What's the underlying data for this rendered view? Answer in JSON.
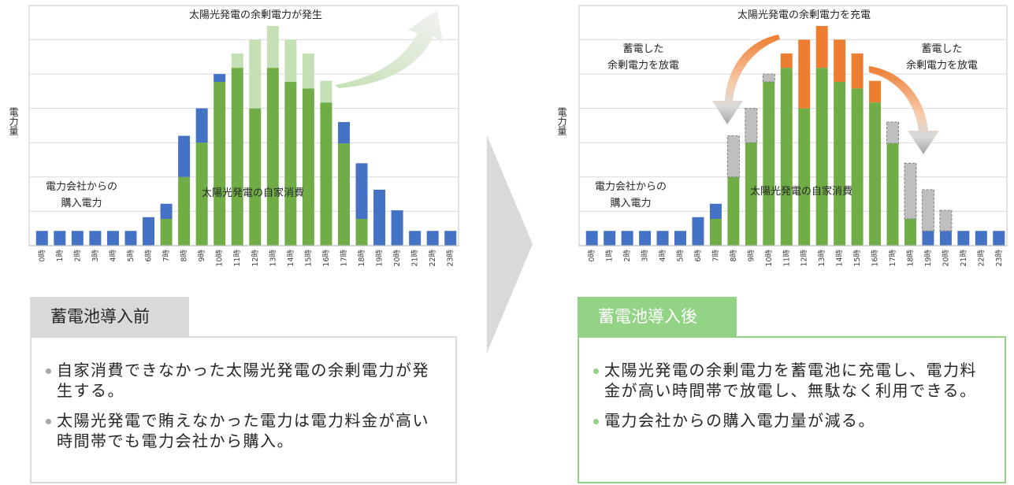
{
  "colors": {
    "purchased": "#4472c4",
    "self_consumption": "#70ad47",
    "surplus_wasted": "#c5e0b4",
    "surplus_charged": "#ed7d31",
    "discharged": "#bfbfbf",
    "gridline": "#d9d9d9",
    "before_tab": "#d9d9d9",
    "after_tab": "#92d385"
  },
  "chart_data": [
    {
      "type": "bar",
      "stacked": true,
      "title": "蓄電池導入前",
      "xlabel": "",
      "ylabel": "電力量",
      "categories": [
        "0時",
        "1時",
        "2時",
        "3時",
        "4時",
        "5時",
        "6時",
        "7時",
        "8時",
        "9時",
        "10時",
        "11時",
        "12時",
        "13時",
        "14時",
        "15時",
        "16時",
        "17時",
        "18時",
        "19時",
        "20時",
        "21時",
        "22時",
        "23時"
      ],
      "series": [
        {
          "name": "太陽光発電の自家消費",
          "color": "#70ad47",
          "values": [
            0,
            0,
            0,
            0,
            0,
            0,
            0,
            0.78,
            2.0,
            3.0,
            4.77,
            5.18,
            4.0,
            5.18,
            4.77,
            4.58,
            4.17,
            2.98,
            0.78,
            0,
            0,
            0,
            0,
            0
          ]
        },
        {
          "name": "電力会社からの購入電力",
          "color": "#4472c4",
          "values": [
            0.43,
            0.43,
            0.43,
            0.43,
            0.43,
            0.43,
            0.83,
            0.44,
            1.2,
            1.0,
            0.23,
            0,
            0,
            0,
            0,
            0,
            0,
            0.62,
            1.62,
            1.63,
            1.03,
            0.43,
            0.43,
            0.43
          ]
        },
        {
          "name": "太陽光発電の余剰電力",
          "color": "#c5e0b4",
          "values": [
            0,
            0,
            0,
            0,
            0,
            0,
            0,
            0,
            0,
            0,
            0,
            0.42,
            2.0,
            1.22,
            1.23,
            1.02,
            0.63,
            0,
            0,
            0,
            0,
            0,
            0,
            0
          ]
        }
      ],
      "ylim": [
        0,
        7
      ],
      "grid": true,
      "annotations": [
        "太陽光発電の余剰電力が発生",
        "電力会社からの購入電力",
        "太陽光発電の自家消費"
      ]
    },
    {
      "type": "bar",
      "stacked": true,
      "title": "蓄電池導入後",
      "xlabel": "",
      "ylabel": "電力量",
      "categories": [
        "0時",
        "1時",
        "2時",
        "3時",
        "4時",
        "5時",
        "6時",
        "7時",
        "8時",
        "9時",
        "10時",
        "11時",
        "12時",
        "13時",
        "14時",
        "15時",
        "16時",
        "17時",
        "18時",
        "19時",
        "20時",
        "21時",
        "22時",
        "23時"
      ],
      "series": [
        {
          "name": "太陽光発電の自家消費",
          "color": "#70ad47",
          "values": [
            0,
            0,
            0,
            0,
            0,
            0,
            0,
            0.78,
            2.0,
            3.0,
            4.77,
            5.18,
            4.0,
            5.18,
            4.77,
            4.58,
            4.17,
            2.98,
            0.78,
            0,
            0,
            0,
            0,
            0
          ]
        },
        {
          "name": "電力会社からの購入電力",
          "color": "#4472c4",
          "values": [
            0.43,
            0.43,
            0.43,
            0.43,
            0.43,
            0.43,
            0.83,
            0.44,
            0,
            0,
            0,
            0,
            0,
            0,
            0,
            0,
            0,
            0,
            0,
            0.43,
            0.43,
            0.43,
            0.43,
            0.43
          ]
        },
        {
          "name": "蓄電した余剰電力を放電",
          "color": "#bfbfbf",
          "values": [
            0,
            0,
            0,
            0,
            0,
            0,
            0,
            0,
            1.2,
            1.0,
            0.23,
            0,
            0,
            0,
            0,
            0,
            0,
            0.62,
            1.62,
            1.2,
            0.6,
            0,
            0,
            0
          ]
        },
        {
          "name": "太陽光発電の余剰電力を充電",
          "color": "#ed7d31",
          "values": [
            0,
            0,
            0,
            0,
            0,
            0,
            0,
            0,
            0,
            0,
            0,
            0.42,
            2.0,
            1.22,
            1.23,
            1.02,
            0.63,
            0,
            0,
            0,
            0,
            0,
            0,
            0
          ]
        }
      ],
      "ylim": [
        0,
        7
      ],
      "grid": true,
      "annotations": [
        "太陽光発電の余剰電力を充電",
        "蓄電した余剰電力を放電",
        "蓄電した余剰電力を放電",
        "電力会社からの購入電力",
        "太陽光発電の自家消費"
      ]
    }
  ],
  "left": {
    "ylabel": "電力量",
    "top_annotation": "太陽光発電の余剰電力が発生",
    "purchase_annotation_line1": "電力会社からの",
    "purchase_annotation_line2": "購入電力",
    "selfuse_annotation": "太陽光発電の自家消費",
    "tab_label": "蓄電池導入前",
    "bullets": [
      "自家消費できなかった太陽光発電の余剰電力が発生する。",
      "太陽光発電で賄えなかった電力は電力料金が高い時間帯でも電力会社から購入。"
    ]
  },
  "right": {
    "ylabel": "電力量",
    "top_annotation": "太陽光発電の余剰電力を充電",
    "discharge_left_line1": "蓄電した",
    "discharge_left_line2": "余剰電力を放電",
    "discharge_right_line1": "蓄電した",
    "discharge_right_line2": "余剰電力を放電",
    "purchase_annotation_line1": "電力会社からの",
    "purchase_annotation_line2": "購入電力",
    "selfuse_annotation": "太陽光発電の自家消費",
    "tab_label": "蓄電池導入後",
    "bullets": [
      "太陽光発電の余剰電力を蓄電池に充電し、電力料金が高い時間帯で放電し、無駄なく利用できる。",
      "電力会社からの購入電力量が減る。"
    ]
  }
}
